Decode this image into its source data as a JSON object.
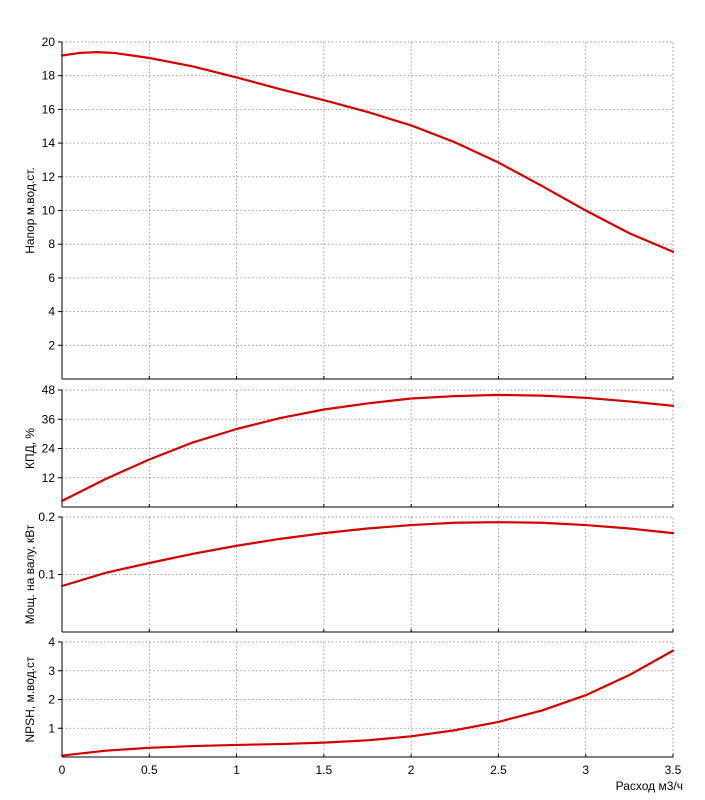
{
  "colors": {
    "curve": "#d40000"
  },
  "chart_data": [
    {
      "type": "line",
      "ylabel": "Напор м.вод.ст.",
      "xlim": [
        0,
        3.5
      ],
      "ylim": [
        0,
        20
      ],
      "yticks": [
        2,
        4,
        6,
        8,
        10,
        12,
        14,
        16,
        18,
        20
      ],
      "grid": true,
      "series": [
        {
          "x": [
            0,
            0.1,
            0.2,
            0.3,
            0.5,
            0.75,
            1.0,
            1.25,
            1.5,
            1.75,
            2.0,
            2.25,
            2.5,
            2.75,
            3.0,
            3.25,
            3.5
          ],
          "y": [
            19.2,
            19.35,
            19.4,
            19.35,
            19.05,
            18.55,
            17.9,
            17.2,
            16.55,
            15.85,
            15.05,
            14.05,
            12.85,
            11.45,
            10.0,
            8.65,
            7.55
          ]
        }
      ]
    },
    {
      "type": "line",
      "ylabel": "КПД, %",
      "xlim": [
        0,
        3.5
      ],
      "ylim": [
        0,
        48
      ],
      "yticks": [
        12,
        24,
        36,
        48
      ],
      "grid": true,
      "series": [
        {
          "x": [
            0,
            0.25,
            0.5,
            0.75,
            1.0,
            1.25,
            1.5,
            1.75,
            2.0,
            2.25,
            2.5,
            2.75,
            3.0,
            3.25,
            3.5
          ],
          "y": [
            2.5,
            11.5,
            19.5,
            26.5,
            32.0,
            36.5,
            40.0,
            42.5,
            44.5,
            45.5,
            46.0,
            45.7,
            44.8,
            43.3,
            41.5
          ]
        }
      ]
    },
    {
      "type": "line",
      "ylabel": "Мощ. на валу, кВт",
      "xlim": [
        0,
        3.5
      ],
      "ylim": [
        0,
        0.2
      ],
      "yticks": [
        0.1,
        0.2
      ],
      "grid": true,
      "series": [
        {
          "x": [
            0,
            0.25,
            0.5,
            0.75,
            1.0,
            1.25,
            1.5,
            1.75,
            2.0,
            2.25,
            2.5,
            2.75,
            3.0,
            3.25,
            3.5
          ],
          "y": [
            0.08,
            0.103,
            0.12,
            0.136,
            0.15,
            0.162,
            0.172,
            0.18,
            0.186,
            0.19,
            0.191,
            0.19,
            0.186,
            0.18,
            0.172
          ]
        }
      ]
    },
    {
      "type": "line",
      "ylabel": "NPSH, м.вод.ст",
      "xlabel": "Расход м3/ч",
      "xlim": [
        0,
        3.5
      ],
      "ylim": [
        0,
        4
      ],
      "yticks": [
        1,
        2,
        3,
        4
      ],
      "xticks": [
        0,
        0.5,
        1,
        1.5,
        2,
        2.5,
        3,
        3.5
      ],
      "grid": true,
      "series": [
        {
          "x": [
            0,
            0.25,
            0.5,
            0.75,
            1.0,
            1.25,
            1.5,
            1.75,
            2.0,
            2.25,
            2.5,
            2.75,
            3.0,
            3.25,
            3.5
          ],
          "y": [
            0.05,
            0.22,
            0.32,
            0.38,
            0.42,
            0.45,
            0.5,
            0.58,
            0.72,
            0.93,
            1.22,
            1.62,
            2.15,
            2.85,
            3.7
          ]
        }
      ]
    }
  ]
}
